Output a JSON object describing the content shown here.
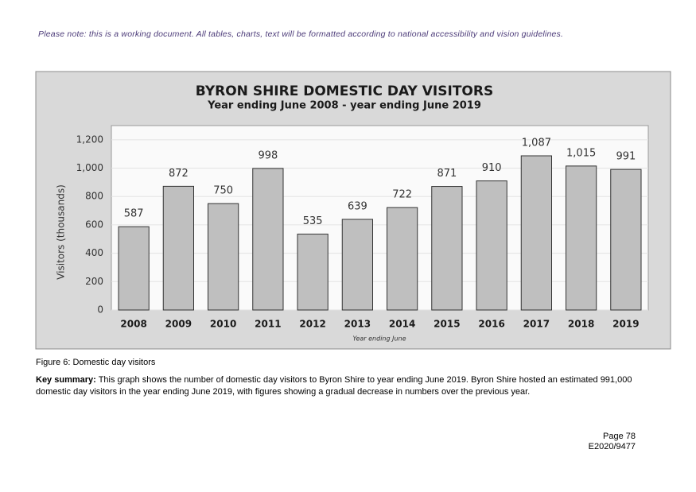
{
  "note": "Please note: this is a working document. All tables, charts, text will be formatted according to national accessibility and vision guidelines.",
  "chart_data": {
    "type": "bar",
    "title": "BYRON SHIRE DOMESTIC DAY VISITORS",
    "subtitle": "Year ending June 2008 - year ending June 2019",
    "y_label": "Visitors (thousands)",
    "x_label": "Year ending June",
    "categories": [
      "2008",
      "2009",
      "2010",
      "2011",
      "2012",
      "2013",
      "2014",
      "2015",
      "2016",
      "2017",
      "2018",
      "2019"
    ],
    "values": [
      587,
      872,
      750,
      998,
      535,
      639,
      722,
      871,
      910,
      1087,
      1015,
      991
    ],
    "value_labels": [
      "587",
      "872",
      "750",
      "998",
      "535",
      "639",
      "722",
      "871",
      "910",
      "1,087",
      "1,015",
      "991"
    ],
    "color": "#bfbfbf",
    "ylim": [
      0,
      1300
    ],
    "yticks": [
      0,
      200,
      400,
      600,
      800,
      {
        "value": 1000,
        "label": "1,000"
      },
      {
        "value": 1200,
        "label": "1,200"
      }
    ],
    "grid": true
  },
  "figure_caption": "Figure 6: Domestic day visitors",
  "summary": {
    "label": "Key summary:",
    "text": "This graph shows the number of domestic day visitors to Byron Shire to year ending June 2019. Byron Shire hosted an estimated 991,000 domestic day visitors in the year ending June 2019, with figures showing a gradual decrease in numbers over the previous year."
  },
  "footer": {
    "page": "Page 78",
    "reference": "E2020/9477"
  }
}
